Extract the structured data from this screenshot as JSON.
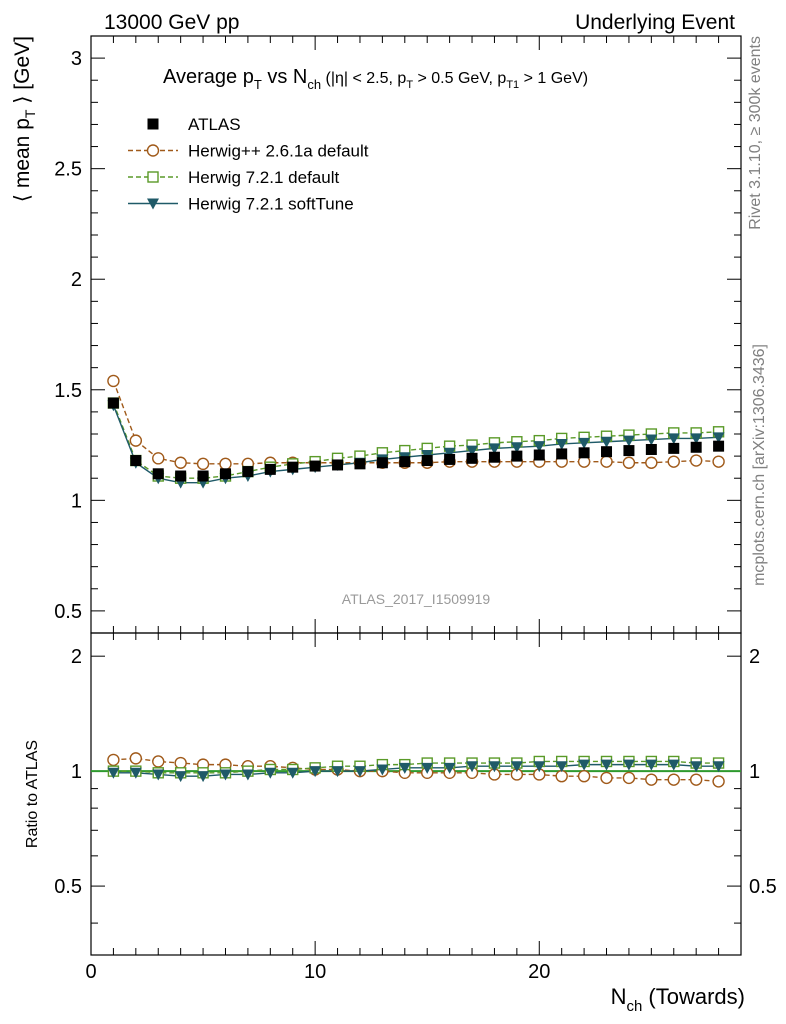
{
  "header": {
    "left": "13000 GeV pp",
    "right": "Underlying Event"
  },
  "side_labels": {
    "top": "Rivet 3.1.10, ≥ 300k events",
    "bottom": "mcplots.cern.ch [arXiv:1306.3436]"
  },
  "title": {
    "avg": "Average p",
    "T": "T",
    "vs": " vs N",
    "ch": "ch",
    "cuts_a": " (|η| < 2.5, p",
    "cuts_b": " > 0.5 GeV, p",
    "T1": "T1",
    "cuts_c": " > 1 GeV)"
  },
  "ylabel_main": {
    "a": "⟨ mean p",
    "T": "T",
    "b": " ⟩ [GeV]"
  },
  "ylabel_ratio": "Ratio to ATLAS",
  "xlabel": {
    "a": "N",
    "ch": "ch",
    "b": " (Towards)"
  },
  "watermark": "ATLAS_2017_I1509919",
  "colors": {
    "atlas": "#000000",
    "herwigpp": "#a05a1a",
    "herwig721": "#5a9a28",
    "softtune": "#1f5a68",
    "ratio_ref": "#2e9a2e"
  },
  "chart_data": {
    "type": "scatter",
    "xlim": [
      0,
      29
    ],
    "ylim": [
      0.4,
      3.1
    ],
    "ratio_ylim": [
      0.33,
      2.3
    ],
    "x_ticks": [
      "0",
      "10",
      "20"
    ],
    "y_ticks": [
      "0.5",
      "1",
      "1.5",
      "2",
      "2.5",
      "3"
    ],
    "ratio_ticks": [
      "0.5",
      "1",
      "2"
    ],
    "legend_position": "top-left",
    "x": [
      1,
      2,
      3,
      4,
      5,
      6,
      7,
      8,
      9,
      10,
      11,
      12,
      13,
      14,
      15,
      16,
      17,
      18,
      19,
      20,
      21,
      22,
      23,
      24,
      25,
      26,
      27,
      28
    ],
    "series": [
      {
        "name": "ATLAS",
        "key": "atlas",
        "marker": "square-filled",
        "values": [
          1.44,
          1.18,
          1.12,
          1.11,
          1.11,
          1.12,
          1.13,
          1.14,
          1.15,
          1.155,
          1.16,
          1.165,
          1.17,
          1.175,
          1.18,
          1.185,
          1.19,
          1.195,
          1.2,
          1.205,
          1.21,
          1.215,
          1.22,
          1.225,
          1.23,
          1.235,
          1.24,
          1.245
        ]
      },
      {
        "name": "Herwig++ 2.6.1a default",
        "key": "herwigpp",
        "marker": "circle-open",
        "values": [
          1.54,
          1.27,
          1.19,
          1.17,
          1.165,
          1.165,
          1.165,
          1.17,
          1.17,
          1.17,
          1.17,
          1.17,
          1.17,
          1.17,
          1.17,
          1.175,
          1.175,
          1.175,
          1.175,
          1.175,
          1.175,
          1.175,
          1.175,
          1.17,
          1.17,
          1.175,
          1.18,
          1.175
        ],
        "ratio": [
          1.07,
          1.08,
          1.06,
          1.05,
          1.04,
          1.04,
          1.03,
          1.03,
          1.02,
          1.01,
          1.01,
          1.0,
          1.0,
          0.99,
          0.99,
          0.99,
          0.99,
          0.98,
          0.98,
          0.98,
          0.97,
          0.97,
          0.96,
          0.96,
          0.95,
          0.95,
          0.95,
          0.94
        ]
      },
      {
        "name": "Herwig 7.2.1 default",
        "key": "herwig721",
        "marker": "square-open",
        "values": [
          1.44,
          1.18,
          1.11,
          1.1,
          1.1,
          1.11,
          1.13,
          1.15,
          1.165,
          1.175,
          1.19,
          1.2,
          1.215,
          1.225,
          1.235,
          1.245,
          1.25,
          1.26,
          1.265,
          1.27,
          1.28,
          1.285,
          1.29,
          1.295,
          1.3,
          1.305,
          1.305,
          1.31
        ],
        "ratio": [
          1.0,
          1.0,
          0.99,
          0.99,
          0.99,
          0.99,
          1.0,
          1.01,
          1.01,
          1.02,
          1.03,
          1.03,
          1.04,
          1.04,
          1.05,
          1.05,
          1.05,
          1.05,
          1.05,
          1.06,
          1.06,
          1.06,
          1.06,
          1.06,
          1.06,
          1.06,
          1.05,
          1.05
        ]
      },
      {
        "name": "Herwig 7.2.1 softTune",
        "key": "softtune",
        "marker": "triangle-down-filled",
        "values": [
          1.43,
          1.17,
          1.1,
          1.08,
          1.08,
          1.1,
          1.11,
          1.13,
          1.14,
          1.15,
          1.16,
          1.17,
          1.185,
          1.195,
          1.205,
          1.215,
          1.225,
          1.235,
          1.24,
          1.245,
          1.255,
          1.26,
          1.265,
          1.27,
          1.275,
          1.28,
          1.28,
          1.285
        ],
        "ratio": [
          0.99,
          0.99,
          0.98,
          0.97,
          0.97,
          0.98,
          0.98,
          0.99,
          0.99,
          1.0,
          1.0,
          1.0,
          1.01,
          1.02,
          1.02,
          1.02,
          1.03,
          1.03,
          1.03,
          1.03,
          1.03,
          1.04,
          1.04,
          1.04,
          1.04,
          1.04,
          1.03,
          1.03
        ]
      }
    ]
  }
}
